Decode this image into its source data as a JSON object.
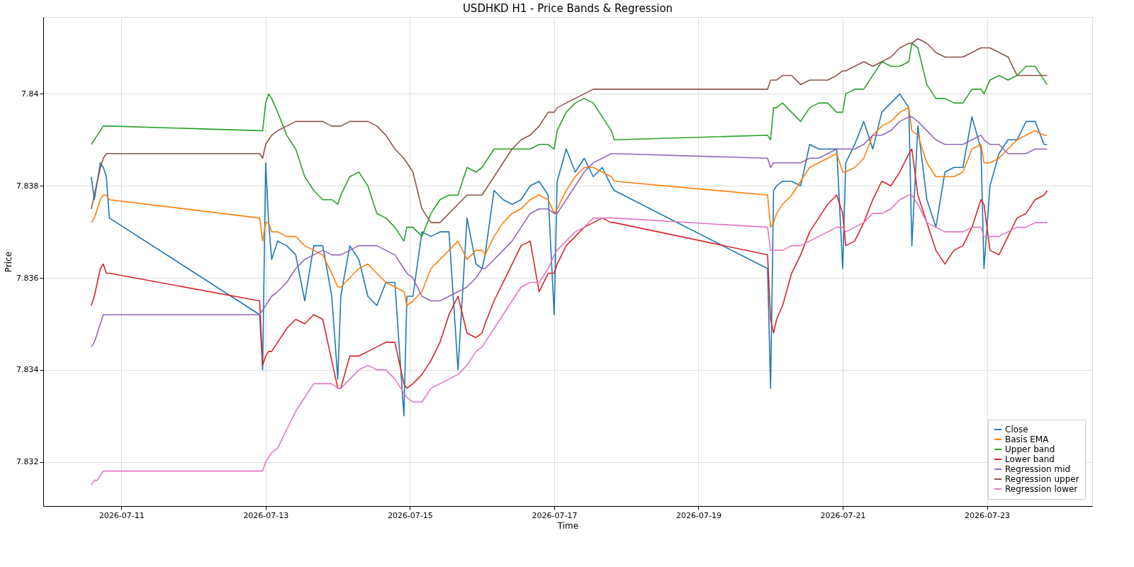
{
  "chart_data": {
    "type": "line",
    "title": "USDHKD H1 - Price Bands & Regression",
    "xlabel": "Time",
    "ylabel": "Price",
    "x": [
      "2026-07-10T14:00",
      "2026-07-10T15:00",
      "2026-07-10T16:00",
      "2026-07-10T17:00",
      "2026-07-10T18:00",
      "2026-07-10T19:00",
      "2026-07-10T20:00",
      "2026-07-12T22:00",
      "2026-07-12T23:00",
      "2026-07-13T00:00",
      "2026-07-13T01:00",
      "2026-07-13T02:00",
      "2026-07-13T04:00",
      "2026-07-13T07:00",
      "2026-07-13T10:00",
      "2026-07-13T13:00",
      "2026-07-13T16:00",
      "2026-07-13T19:00",
      "2026-07-13T22:00",
      "2026-07-14T00:00",
      "2026-07-14T01:00",
      "2026-07-14T04:00",
      "2026-07-14T07:00",
      "2026-07-14T10:00",
      "2026-07-14T13:00",
      "2026-07-14T16:00",
      "2026-07-14T19:00",
      "2026-07-14T22:00",
      "2026-07-14T23:00",
      "2026-07-15T01:00",
      "2026-07-15T04:00",
      "2026-07-15T07:00",
      "2026-07-15T10:00",
      "2026-07-15T13:00",
      "2026-07-15T16:00",
      "2026-07-15T19:00",
      "2026-07-15T22:00",
      "2026-07-16T00:00",
      "2026-07-16T01:00",
      "2026-07-16T04:00",
      "2026-07-16T07:00",
      "2026-07-16T10:00",
      "2026-07-16T13:00",
      "2026-07-16T16:00",
      "2026-07-16T19:00",
      "2026-07-16T22:00",
      "2026-07-17T00:00",
      "2026-07-17T01:00",
      "2026-07-17T04:00",
      "2026-07-17T07:00",
      "2026-07-17T10:00",
      "2026-07-17T13:00",
      "2026-07-17T16:00",
      "2026-07-17T19:00",
      "2026-07-17T20:00",
      "2026-07-19T23:00",
      "2026-07-20T00:00",
      "2026-07-20T01:00",
      "2026-07-20T02:00",
      "2026-07-20T04:00",
      "2026-07-20T07:00",
      "2026-07-20T10:00",
      "2026-07-20T13:00",
      "2026-07-20T16:00",
      "2026-07-20T19:00",
      "2026-07-20T22:00",
      "2026-07-21T00:00",
      "2026-07-21T01:00",
      "2026-07-21T04:00",
      "2026-07-21T07:00",
      "2026-07-21T10:00",
      "2026-07-21T13:00",
      "2026-07-21T16:00",
      "2026-07-21T19:00",
      "2026-07-21T22:00",
      "2026-07-21T23:00",
      "2026-07-22T01:00",
      "2026-07-22T04:00",
      "2026-07-22T07:00",
      "2026-07-22T10:00",
      "2026-07-22T13:00",
      "2026-07-22T16:00",
      "2026-07-22T19:00",
      "2026-07-22T22:00",
      "2026-07-22T23:00",
      "2026-07-23T01:00",
      "2026-07-23T04:00",
      "2026-07-23T07:00",
      "2026-07-23T10:00",
      "2026-07-23T13:00",
      "2026-07-23T16:00",
      "2026-07-23T19:00",
      "2026-07-23T20:00"
    ],
    "series": [
      {
        "name": "Close",
        "color": "#1f77b4",
        "values": [
          7.8382,
          7.8377,
          7.8381,
          7.8385,
          7.8384,
          7.8382,
          7.8373,
          7.8352,
          7.834,
          7.8385,
          7.8372,
          7.8364,
          7.8368,
          7.8367,
          7.8365,
          7.8355,
          7.8367,
          7.8367,
          7.8356,
          7.8338,
          7.8356,
          7.8367,
          7.8364,
          7.8356,
          7.8354,
          7.8359,
          7.8359,
          7.833,
          7.8356,
          7.8356,
          7.837,
          7.8369,
          7.837,
          7.837,
          7.834,
          7.8373,
          7.8363,
          7.8362,
          7.8365,
          7.8379,
          7.8377,
          7.8376,
          7.8377,
          7.838,
          7.8381,
          7.8378,
          7.8352,
          7.8381,
          7.8388,
          7.8383,
          7.8386,
          7.8382,
          7.8384,
          7.838,
          7.8379,
          7.8362,
          7.8336,
          7.8379,
          7.838,
          7.8381,
          7.8381,
          7.838,
          7.8389,
          7.8388,
          7.8388,
          7.8388,
          7.8362,
          7.8385,
          7.8389,
          7.8394,
          7.8388,
          7.8396,
          7.8398,
          7.84,
          7.8397,
          7.8367,
          7.8393,
          7.8377,
          7.8371,
          7.8383,
          7.8384,
          7.8384,
          7.8395,
          7.8388,
          7.8362,
          7.838,
          7.8387,
          7.839,
          7.839,
          7.8394,
          7.8394,
          7.8389,
          7.8389
        ]
      },
      {
        "name": "Basis EMA",
        "color": "#ff7f0e",
        "values": [
          7.8372,
          7.8373,
          7.8375,
          7.8377,
          7.8378,
          7.8378,
          7.8377,
          7.8373,
          7.8368,
          7.8372,
          7.8372,
          7.837,
          7.837,
          7.8369,
          7.8369,
          7.8367,
          7.8366,
          7.8365,
          7.8361,
          7.8358,
          7.8358,
          7.836,
          7.8362,
          7.8363,
          7.8361,
          7.8359,
          7.8358,
          7.8357,
          7.8354,
          7.8355,
          7.8357,
          7.8362,
          7.8364,
          7.8366,
          7.8368,
          7.8364,
          7.8366,
          7.8366,
          7.8365,
          7.8369,
          7.8372,
          7.8374,
          7.8375,
          7.8377,
          7.8378,
          7.8377,
          7.8374,
          7.8375,
          7.8379,
          7.8382,
          7.8384,
          7.8384,
          7.8383,
          7.8382,
          7.8381,
          7.8378,
          7.8371,
          7.8372,
          7.8374,
          7.8376,
          7.8378,
          7.8381,
          7.8384,
          7.8385,
          7.8386,
          7.8387,
          7.8383,
          7.8383,
          7.8384,
          7.8386,
          7.8391,
          7.8393,
          7.8394,
          7.8396,
          7.8397,
          7.8392,
          7.8391,
          7.8385,
          7.8382,
          7.8382,
          7.8382,
          7.8383,
          7.8388,
          7.8389,
          7.8385,
          7.8385,
          7.8386,
          7.8388,
          7.839,
          7.8391,
          7.8392,
          7.8391,
          7.8391
        ]
      },
      {
        "name": "Upper band",
        "color": "#2ca02c",
        "values": [
          7.8389,
          7.839,
          7.8391,
          7.8392,
          7.8393,
          7.8393,
          7.8393,
          7.8392,
          7.8392,
          7.8398,
          7.84,
          7.8399,
          7.8396,
          7.8391,
          7.8388,
          7.8382,
          7.8379,
          7.8377,
          7.8377,
          7.8376,
          7.8378,
          7.8382,
          7.8383,
          7.838,
          7.8374,
          7.8373,
          7.8371,
          7.8368,
          7.8371,
          7.8371,
          7.8369,
          7.8374,
          7.8377,
          7.8378,
          7.8378,
          7.8384,
          7.8383,
          7.8384,
          7.8385,
          7.8388,
          7.8388,
          7.8388,
          7.8388,
          7.8388,
          7.8389,
          7.8389,
          7.8388,
          7.8392,
          7.8396,
          7.8398,
          7.8399,
          7.8398,
          7.8395,
          7.8392,
          7.839,
          7.8391,
          7.839,
          7.8397,
          7.8397,
          7.8398,
          7.8396,
          7.8394,
          7.8397,
          7.8398,
          7.8398,
          7.8396,
          7.8396,
          7.84,
          7.8401,
          7.8401,
          7.8404,
          7.8407,
          7.8406,
          7.8406,
          7.8407,
          7.8411,
          7.841,
          7.8402,
          7.8399,
          7.8399,
          7.8398,
          7.8398,
          7.8401,
          7.8401,
          7.84,
          7.8403,
          7.8404,
          7.8403,
          7.8404,
          7.8406,
          7.8406,
          7.8403,
          7.8402
        ]
      },
      {
        "name": "Lower band",
        "color": "#d62728",
        "values": [
          7.8354,
          7.8356,
          7.8359,
          7.8362,
          7.8363,
          7.8361,
          7.8361,
          7.8355,
          7.8341,
          7.8343,
          7.8344,
          7.8344,
          7.8346,
          7.8349,
          7.8351,
          7.835,
          7.8352,
          7.8351,
          7.8342,
          7.8336,
          7.8336,
          7.8343,
          7.8343,
          7.8344,
          7.8345,
          7.8346,
          7.8346,
          7.8337,
          7.8336,
          7.8337,
          7.8339,
          7.8342,
          7.8346,
          7.8352,
          7.8356,
          7.8348,
          7.8347,
          7.8348,
          7.835,
          7.8355,
          7.8359,
          7.8363,
          7.8367,
          7.8368,
          7.8357,
          7.8361,
          7.8361,
          7.8363,
          7.8367,
          7.8369,
          7.8371,
          7.8372,
          7.8373,
          7.8372,
          7.8372,
          7.8365,
          7.8351,
          7.8348,
          7.8351,
          7.8354,
          7.8361,
          7.8365,
          7.837,
          7.8373,
          7.8376,
          7.8378,
          7.8374,
          7.8367,
          7.8368,
          7.8372,
          7.8377,
          7.8381,
          7.838,
          7.8383,
          7.8387,
          7.8388,
          7.8378,
          7.8372,
          7.8366,
          7.8363,
          7.8366,
          7.8367,
          7.8371,
          7.8377,
          7.8376,
          7.8366,
          7.8365,
          7.8369,
          7.8373,
          7.8374,
          7.8377,
          7.8378,
          7.8379
        ]
      },
      {
        "name": "Regression mid",
        "color": "#9467bd",
        "values": [
          7.8345,
          7.8346,
          7.8348,
          7.835,
          7.8352,
          7.8352,
          7.8352,
          7.8352,
          7.8353,
          7.8354,
          7.8355,
          7.8356,
          7.8357,
          7.8359,
          7.8362,
          7.8364,
          7.8365,
          7.8366,
          7.8365,
          7.8365,
          7.8365,
          7.8366,
          7.8367,
          7.8367,
          7.8367,
          7.8366,
          7.8365,
          7.8362,
          7.8361,
          7.836,
          7.8356,
          7.8355,
          7.8355,
          7.8356,
          7.8357,
          7.8358,
          7.836,
          7.8362,
          7.8362,
          7.8364,
          7.8366,
          7.8368,
          7.8371,
          7.8374,
          7.8375,
          7.8375,
          7.8374,
          7.8374,
          7.8377,
          7.838,
          7.8383,
          7.8385,
          7.8386,
          7.8387,
          7.8387,
          7.8386,
          7.8384,
          7.8385,
          7.8385,
          7.8385,
          7.8385,
          7.8385,
          7.8386,
          7.8386,
          7.8387,
          7.8388,
          7.8388,
          7.8388,
          7.8388,
          7.8389,
          7.8391,
          7.8391,
          7.8392,
          7.8394,
          7.8395,
          7.8395,
          7.8394,
          7.8392,
          7.839,
          7.8389,
          7.8389,
          7.8389,
          7.839,
          7.8391,
          7.839,
          7.8389,
          7.8389,
          7.8387,
          7.8387,
          7.8387,
          7.8388,
          7.8388,
          7.8388
        ]
      },
      {
        "name": "Regression upper",
        "color": "#8c564b",
        "values": [
          7.8375,
          7.8378,
          7.8381,
          7.8384,
          7.8386,
          7.8387,
          7.8387,
          7.8387,
          7.8386,
          7.8389,
          7.839,
          7.8391,
          7.8392,
          7.8393,
          7.8394,
          7.8394,
          7.8394,
          7.8394,
          7.8393,
          7.8393,
          7.8393,
          7.8394,
          7.8394,
          7.8394,
          7.8393,
          7.8391,
          7.8388,
          7.8386,
          7.8385,
          7.8383,
          7.8375,
          7.8372,
          7.8372,
          7.8374,
          7.8376,
          7.8378,
          7.8378,
          7.8378,
          7.8379,
          7.8382,
          7.8385,
          7.8388,
          7.839,
          7.8391,
          7.8393,
          7.8396,
          7.8396,
          7.8397,
          7.8398,
          7.8399,
          7.84,
          7.8401,
          7.8401,
          7.8401,
          7.8401,
          7.8401,
          7.8403,
          7.8403,
          7.8403,
          7.8404,
          7.8404,
          7.8402,
          7.8403,
          7.8403,
          7.8403,
          7.8404,
          7.8405,
          7.8405,
          7.8406,
          7.8407,
          7.8406,
          7.8407,
          7.8408,
          7.841,
          7.8411,
          7.8411,
          7.8412,
          7.8411,
          7.8409,
          7.8408,
          7.8408,
          7.8408,
          7.8409,
          7.841,
          7.841,
          7.841,
          7.8409,
          7.8408,
          7.8404,
          7.8404,
          7.8404,
          7.8404,
          7.8404
        ]
      },
      {
        "name": "Regression lower",
        "color": "#e377c2",
        "values": [
          7.8315,
          7.8316,
          7.8316,
          7.8317,
          7.8318,
          7.8318,
          7.8318,
          7.8318,
          7.8318,
          7.832,
          7.8321,
          7.8322,
          7.8323,
          7.8327,
          7.8331,
          7.8334,
          7.8337,
          7.8337,
          7.8337,
          7.8336,
          7.8336,
          7.8338,
          7.834,
          7.8341,
          7.834,
          7.834,
          7.8338,
          7.8335,
          7.8334,
          7.8333,
          7.8333,
          7.8336,
          7.8337,
          7.8338,
          7.8339,
          7.8341,
          7.8344,
          7.8345,
          7.8346,
          7.8349,
          7.8352,
          7.8355,
          7.8358,
          7.8359,
          7.8359,
          7.8362,
          7.8365,
          7.8366,
          7.8368,
          7.837,
          7.8371,
          7.8373,
          7.8373,
          7.8373,
          7.8373,
          7.8371,
          7.8366,
          7.8366,
          7.8366,
          7.8366,
          7.8367,
          7.8367,
          7.8368,
          7.8369,
          7.837,
          7.8371,
          7.8371,
          7.837,
          7.8371,
          7.8372,
          7.8374,
          7.8374,
          7.8375,
          7.8377,
          7.8378,
          7.8378,
          7.8376,
          7.8372,
          7.8371,
          7.837,
          7.837,
          7.837,
          7.8371,
          7.8371,
          7.8369,
          7.8369,
          7.8369,
          7.837,
          7.8371,
          7.8371,
          7.8372,
          7.8372,
          7.8372
        ]
      }
    ],
    "xlim": [
      "2026-07-09T22:00",
      "2026-07-24T11:00"
    ],
    "xticks": [
      "2026-07-11",
      "2026-07-13",
      "2026-07-15",
      "2026-07-17",
      "2026-07-19",
      "2026-07-21",
      "2026-07-23"
    ],
    "ylim": [
      7.83104,
      7.84167
    ],
    "yticks": [
      7.832,
      7.834,
      7.836,
      7.838,
      7.84
    ],
    "grid": true,
    "legend": "bottom right",
    "line_style": "solid"
  }
}
